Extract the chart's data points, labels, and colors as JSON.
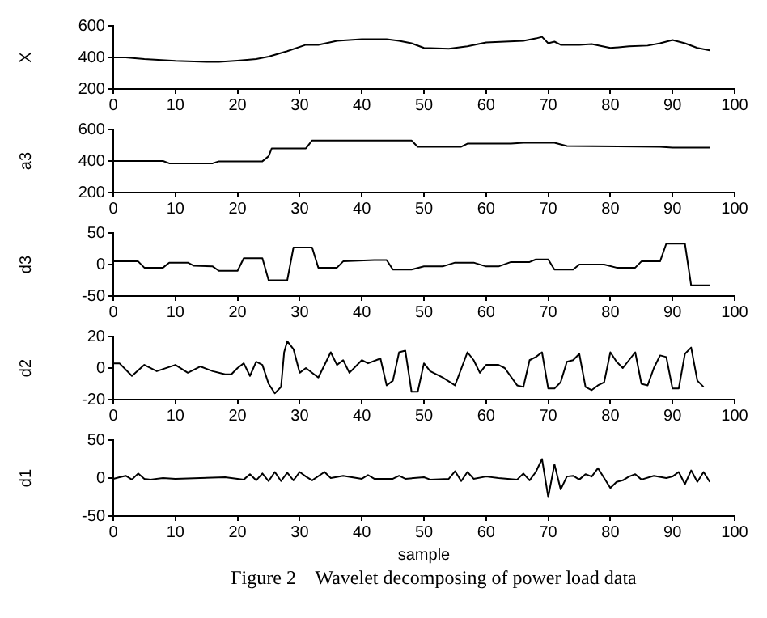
{
  "chart_data": [
    {
      "type": "line",
      "ylabel": "X",
      "xlim": [
        0,
        100
      ],
      "xticks": [
        0,
        10,
        20,
        30,
        40,
        50,
        60,
        70,
        80,
        90,
        100
      ],
      "ylim": [
        200,
        600
      ],
      "yticks": [
        200,
        400,
        600
      ],
      "grid": false,
      "legend": false,
      "series": [
        {
          "color": "#000000",
          "x": [
            0,
            2,
            5,
            10,
            15,
            17,
            20,
            23,
            25,
            28,
            31,
            33,
            36,
            40,
            44,
            46,
            48,
            50,
            54,
            57,
            60,
            63,
            66,
            68,
            69,
            70,
            71,
            72,
            75,
            77,
            80,
            83,
            86,
            88,
            90,
            92,
            94,
            96
          ],
          "values": [
            400,
            400,
            390,
            378,
            372,
            372,
            380,
            390,
            405,
            440,
            480,
            480,
            505,
            515,
            515,
            505,
            490,
            460,
            455,
            470,
            495,
            500,
            505,
            520,
            530,
            490,
            500,
            480,
            480,
            485,
            460,
            470,
            475,
            490,
            510,
            490,
            460,
            445
          ]
        }
      ]
    },
    {
      "type": "line",
      "ylabel": "a3",
      "xlim": [
        0,
        100
      ],
      "xticks": [
        0,
        10,
        20,
        30,
        40,
        50,
        60,
        70,
        80,
        90,
        100
      ],
      "ylim": [
        200,
        600
      ],
      "yticks": [
        200,
        400,
        600
      ],
      "grid": false,
      "legend": false,
      "series": [
        {
          "color": "#000000",
          "x": [
            0,
            8,
            9,
            16,
            17,
            24,
            25,
            25.5,
            31,
            32,
            48,
            49,
            56,
            57,
            64,
            66,
            71,
            73,
            88,
            90,
            96
          ],
          "values": [
            400,
            400,
            385,
            385,
            398,
            398,
            430,
            480,
            480,
            530,
            530,
            490,
            490,
            510,
            510,
            515,
            515,
            495,
            490,
            485,
            485
          ]
        }
      ]
    },
    {
      "type": "line",
      "ylabel": "d3",
      "xlim": [
        0,
        100
      ],
      "xticks": [
        0,
        10,
        20,
        30,
        40,
        50,
        60,
        70,
        80,
        90,
        100
      ],
      "ylim": [
        -50,
        50
      ],
      "yticks": [
        -50,
        0,
        50
      ],
      "grid": false,
      "legend": false,
      "series": [
        {
          "color": "#000000",
          "x": [
            0,
            4,
            5,
            8,
            9,
            12,
            13,
            16,
            17,
            20,
            21,
            24,
            25,
            28,
            29,
            32,
            33,
            36,
            37,
            42,
            44,
            45,
            48,
            50,
            53,
            55,
            58,
            60,
            62,
            64,
            67,
            68,
            70,
            71,
            74,
            75,
            79,
            81,
            84,
            85,
            88,
            89,
            92,
            93,
            96
          ],
          "values": [
            5,
            5,
            -5,
            -5,
            3,
            3,
            -2,
            -3,
            -10,
            -10,
            10,
            10,
            -25,
            -25,
            27,
            27,
            -5,
            -5,
            5,
            7,
            7,
            -8,
            -8,
            -3,
            -3,
            3,
            3,
            -3,
            -3,
            4,
            4,
            8,
            8,
            -8,
            -8,
            0,
            0,
            -5,
            -5,
            5,
            5,
            33,
            33,
            -33,
            -33
          ]
        }
      ]
    },
    {
      "type": "line",
      "ylabel": "d2",
      "xlim": [
        0,
        100
      ],
      "xticks": [
        0,
        10,
        20,
        30,
        40,
        50,
        60,
        70,
        80,
        90,
        100
      ],
      "ylim": [
        -20,
        20
      ],
      "yticks": [
        -20,
        0,
        20
      ],
      "grid": false,
      "legend": false,
      "series": [
        {
          "color": "#000000",
          "x": [
            0,
            1,
            3,
            5,
            7,
            10,
            12,
            14,
            16,
            18,
            19,
            20,
            21,
            22,
            23,
            24,
            25,
            26,
            27,
            27.5,
            28,
            29,
            30,
            31,
            33,
            35,
            36,
            37,
            38,
            40,
            41,
            43,
            44,
            45,
            46,
            47,
            48,
            49,
            50,
            51,
            53,
            55,
            57,
            58,
            59,
            60,
            62,
            63,
            65,
            66,
            67,
            68,
            69,
            70,
            71,
            72,
            73,
            74,
            75,
            76,
            77,
            78,
            79,
            80,
            81,
            82,
            84,
            85,
            86,
            87,
            88,
            89,
            90,
            91,
            92,
            93,
            94,
            95
          ],
          "values": [
            3,
            3,
            -5,
            2,
            -2,
            2,
            -3,
            1,
            -2,
            -4,
            -4,
            0,
            3,
            -5,
            4,
            2,
            -10,
            -16,
            -12,
            10,
            17,
            12,
            -3,
            0,
            -6,
            10,
            2,
            5,
            -3,
            5,
            3,
            6,
            -11,
            -8,
            10,
            11,
            -15,
            -15,
            3,
            -2,
            -6,
            -11,
            10,
            5,
            -3,
            2,
            2,
            0,
            -11,
            -12,
            5,
            7,
            10,
            -13,
            -13,
            -9,
            4,
            5,
            9,
            -12,
            -14,
            -11,
            -9,
            10,
            4,
            0,
            10,
            -10,
            -11,
            0,
            8,
            7,
            -13,
            -13,
            9,
            13,
            -8,
            -12
          ]
        }
      ]
    },
    {
      "type": "line",
      "ylabel": "d1",
      "xlabel": "sample",
      "xlim": [
        0,
        100
      ],
      "xticks": [
        0,
        10,
        20,
        30,
        40,
        50,
        60,
        70,
        80,
        90,
        100
      ],
      "ylim": [
        -50,
        50
      ],
      "yticks": [
        -50,
        0,
        50
      ],
      "grid": false,
      "legend": false,
      "annotations": [
        "Figure 2    Wavelet decomposing of power load data"
      ],
      "series": [
        {
          "color": "#000000",
          "x": [
            0,
            1,
            2,
            3,
            4,
            5,
            6,
            8,
            10,
            14,
            18,
            20,
            21,
            22,
            23,
            24,
            25,
            26,
            27,
            28,
            29,
            30,
            31,
            32,
            34,
            35,
            37,
            40,
            41,
            42,
            45,
            46,
            47,
            50,
            51,
            54,
            55,
            56,
            57,
            58,
            60,
            62,
            65,
            66,
            67,
            68,
            69,
            70,
            71,
            72,
            73,
            74,
            75,
            76,
            77,
            78,
            80,
            81,
            82,
            83,
            84,
            85,
            87,
            89,
            90,
            91,
            92,
            93,
            94,
            95,
            96
          ],
          "values": [
            -1,
            1,
            3,
            -2,
            6,
            -1,
            -2,
            0,
            -1,
            0,
            1,
            -1,
            -2,
            5,
            -3,
            6,
            -4,
            8,
            -4,
            7,
            -3,
            8,
            2,
            -3,
            8,
            0,
            3,
            -1,
            4,
            -1,
            -1,
            3,
            -1,
            1,
            -2,
            -1,
            9,
            -4,
            8,
            -1,
            2,
            0,
            -2,
            6,
            -3,
            8,
            25,
            -25,
            18,
            -15,
            2,
            3,
            -2,
            5,
            2,
            13,
            -13,
            -5,
            -3,
            2,
            5,
            -2,
            3,
            0,
            2,
            8,
            -8,
            10,
            -5,
            8,
            -5
          ]
        }
      ]
    }
  ]
}
